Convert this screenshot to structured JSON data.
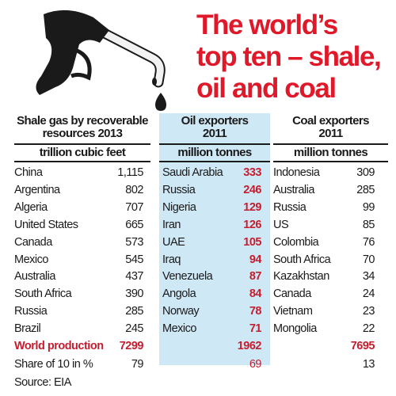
{
  "title_lines": [
    "The world’s",
    "top ten – shale,",
    "oil and coal"
  ],
  "colors": {
    "title": "#e0192a",
    "oil_values": "#c41e2f",
    "oil_band": "#cfe8f6",
    "text": "#1a1a1a"
  },
  "icon": "fuel-pump-nozzle-icon",
  "chart_data": {
    "type": "table",
    "tables": [
      {
        "heading": [
          "Shale gas by recoverable",
          "resources 2013"
        ],
        "unit": "trillion cubic feet",
        "rows": [
          {
            "name": "China",
            "value": "1,115"
          },
          {
            "name": "Argentina",
            "value": "802"
          },
          {
            "name": "Algeria",
            "value": "707"
          },
          {
            "name": "United States",
            "value": "665"
          },
          {
            "name": "Canada",
            "value": "573"
          },
          {
            "name": "Mexico",
            "value": "545"
          },
          {
            "name": "Australia",
            "value": "437"
          },
          {
            "name": "South Africa",
            "value": "390"
          },
          {
            "name": "Russia",
            "value": "285"
          },
          {
            "name": "Brazil",
            "value": "245"
          }
        ],
        "total_label": "World production",
        "total_value": "7299",
        "share_label": "Share of 10 in %",
        "share_value": "79"
      },
      {
        "heading": [
          "Oil exporters",
          "2011"
        ],
        "unit": "million tonnes",
        "rows": [
          {
            "name": "Saudi Arabia",
            "value": "333"
          },
          {
            "name": "Russia",
            "value": "246"
          },
          {
            "name": "Nigeria",
            "value": "129"
          },
          {
            "name": "Iran",
            "value": "126"
          },
          {
            "name": "UAE",
            "value": "105"
          },
          {
            "name": "Iraq",
            "value": "94"
          },
          {
            "name": "Venezuela",
            "value": "87"
          },
          {
            "name": "Angola",
            "value": "84"
          },
          {
            "name": "Norway",
            "value": "78"
          },
          {
            "name": "Mexico",
            "value": "71"
          }
        ],
        "total_value": "1962",
        "share_value": "69"
      },
      {
        "heading": [
          "Coal exporters",
          "2011"
        ],
        "unit": "million tonnes",
        "rows": [
          {
            "name": "Indonesia",
            "value": "309"
          },
          {
            "name": "Australia",
            "value": "285"
          },
          {
            "name": "Russia",
            "value": "99"
          },
          {
            "name": "US",
            "value": "85"
          },
          {
            "name": "Colombia",
            "value": "76"
          },
          {
            "name": "South Africa",
            "value": "70"
          },
          {
            "name": "Kazakhstan",
            "value": "34"
          },
          {
            "name": "Canada",
            "value": "24"
          },
          {
            "name": "Vietnam",
            "value": "23"
          },
          {
            "name": "Mongolia",
            "value": "22"
          }
        ],
        "total_value": "7695",
        "share_value": "13"
      }
    ],
    "source": "Source: EIA"
  }
}
